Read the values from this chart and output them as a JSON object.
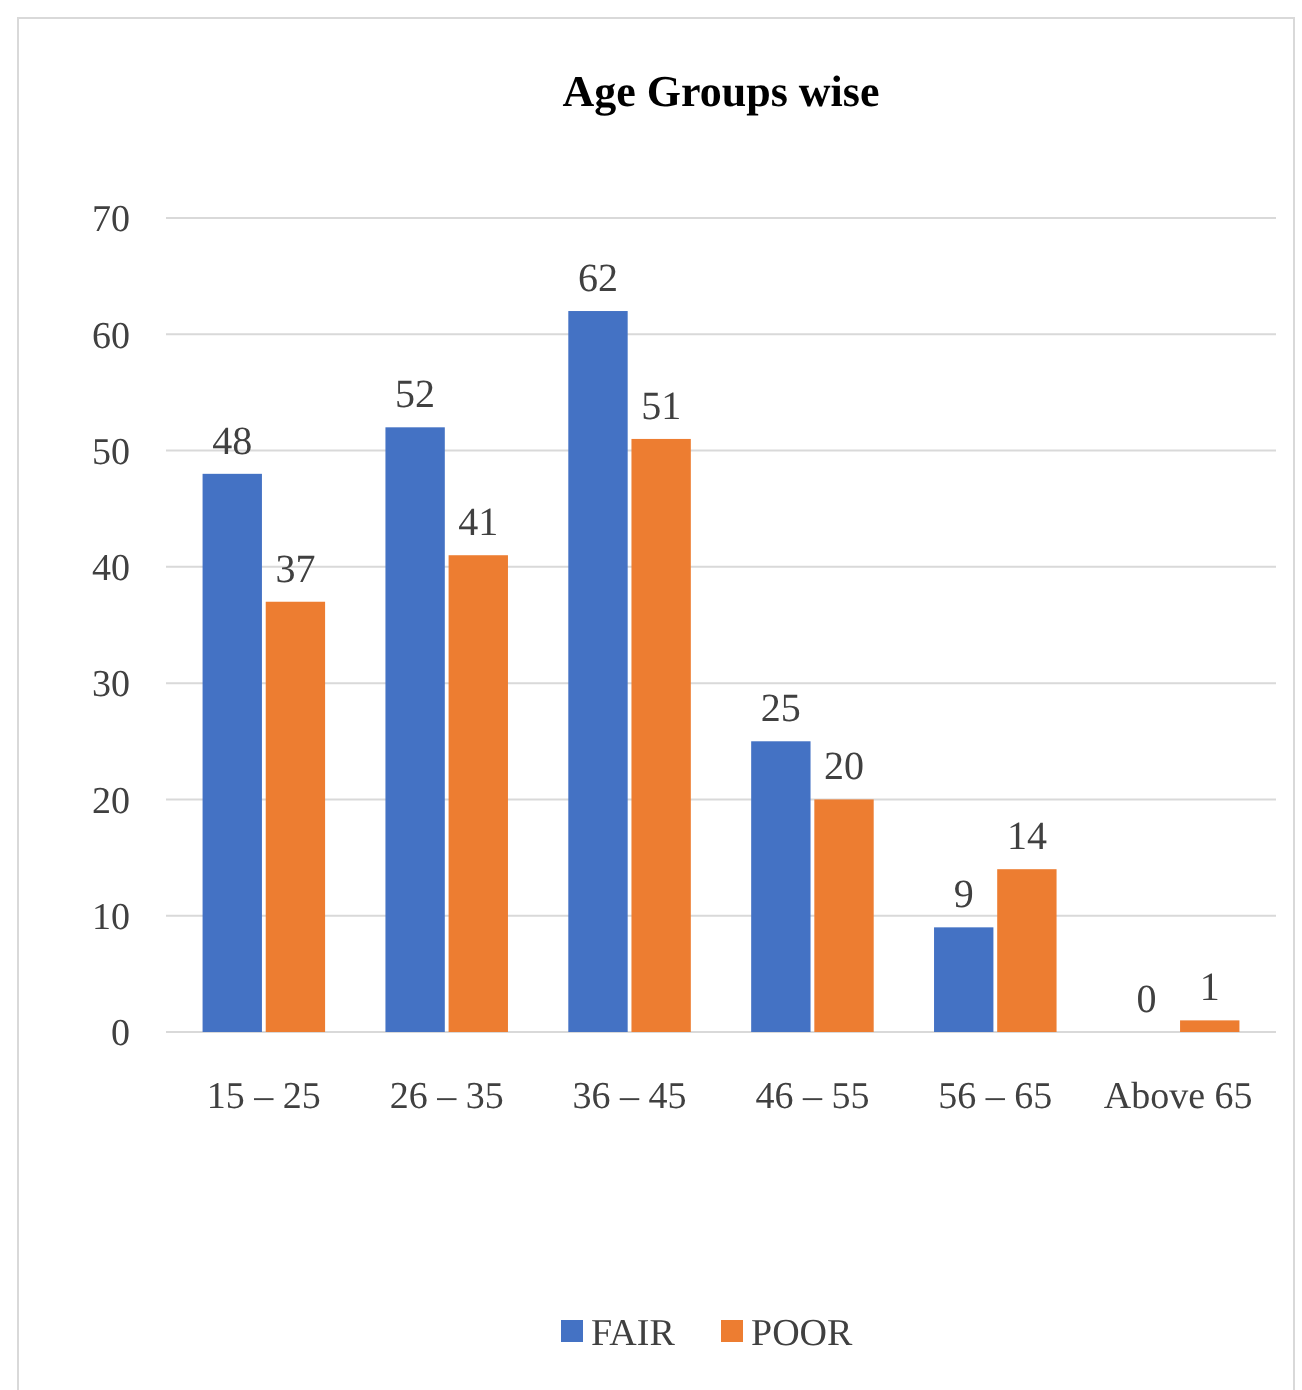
{
  "chart_data": {
    "type": "bar",
    "title": "Age Groups wise",
    "categories": [
      "15 – 25",
      "26 – 35",
      "36 – 45",
      "46 – 55",
      "56 – 65",
      "Above 65"
    ],
    "series": [
      {
        "name": "FAIR",
        "color": "#4472c4",
        "values": [
          48,
          52,
          62,
          25,
          9,
          0
        ]
      },
      {
        "name": "POOR",
        "color": "#ed7d31",
        "values": [
          37,
          41,
          51,
          20,
          14,
          1
        ]
      }
    ],
    "ylim": [
      0,
      70
    ],
    "yticks": [
      0,
      10,
      20,
      30,
      40,
      50,
      60,
      70
    ],
    "grid": "y",
    "data_labels": true,
    "legend": "bottom"
  }
}
